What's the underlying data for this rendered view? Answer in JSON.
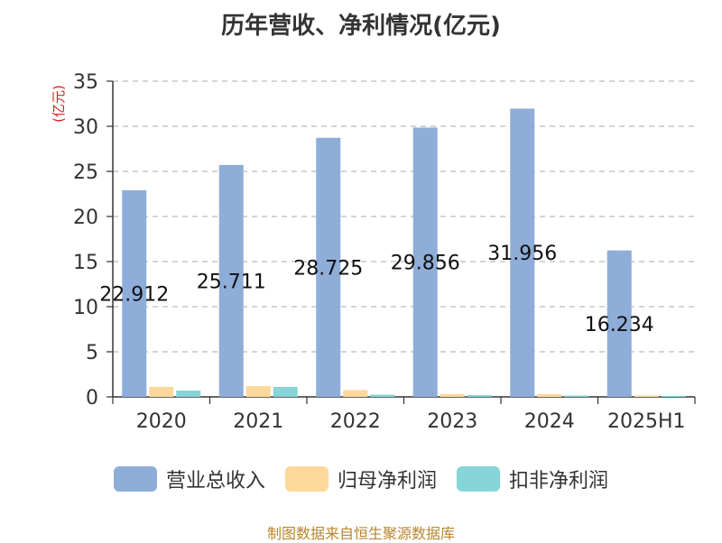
{
  "title": "历年营收、净利情况(亿元)",
  "footer": "制图数据来自恒生聚源数据库",
  "chart_data": {
    "type": "bar",
    "title": "历年营收、净利情况(亿元)",
    "ylabel": "(亿元)",
    "ylabel_color": "#e02020",
    "ylim": [
      0,
      35
    ],
    "yticks": [
      "0",
      "5",
      "10",
      "15",
      "20",
      "25",
      "30",
      "35"
    ],
    "grid": true,
    "legend_position": "bottom",
    "categories": [
      "2020",
      "2021",
      "2022",
      "2023",
      "2024",
      "2025H1"
    ],
    "series": [
      {
        "name": "营业总收入",
        "color": "#8eadd9",
        "values": [
          22.912,
          25.711,
          28.725,
          29.856,
          31.956,
          16.234
        ],
        "labels": [
          "22.912",
          "25.711",
          "28.725",
          "29.856",
          "31.956",
          "16.234"
        ]
      },
      {
        "name": "归母净利润",
        "color": "#fdd89b",
        "values": [
          1.1,
          1.2,
          0.75,
          0.3,
          0.3,
          0.15
        ]
      },
      {
        "name": "扣非净利润",
        "color": "#86d5d8",
        "values": [
          0.7,
          1.1,
          0.25,
          0.2,
          0.15,
          0.1
        ]
      }
    ]
  }
}
